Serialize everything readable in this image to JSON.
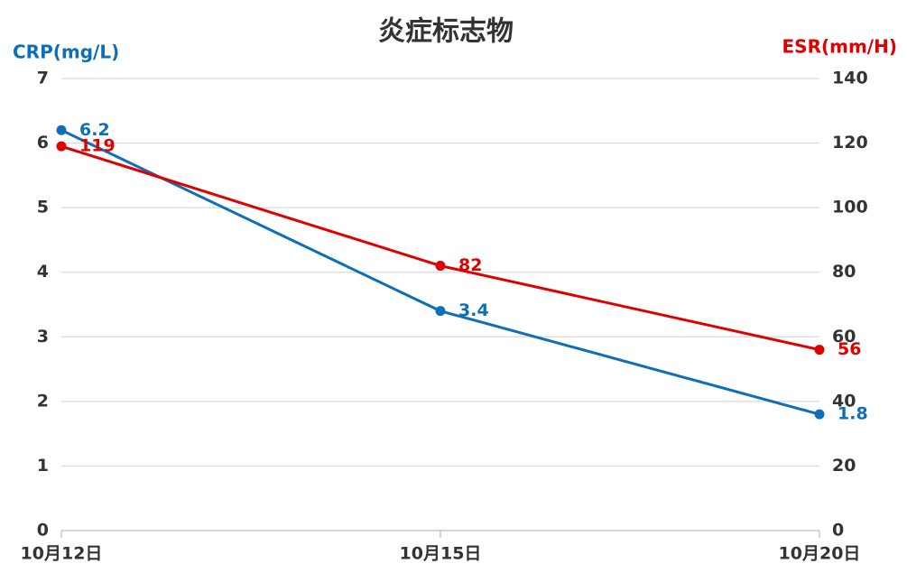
{
  "chart_data": {
    "type": "line",
    "title": "炎症标志物",
    "y_label": "CRP(mg/L)",
    "y2_label": "ESR(mm/H)",
    "categories": [
      "10月12日",
      "10月15日",
      "10月20日"
    ],
    "series": [
      {
        "name": "CRP(mg/L)",
        "color": "#0e6fb8",
        "values": [
          6.2,
          3.4,
          1.8
        ]
      },
      {
        "name": "ESR(mm/H)",
        "color": "#e00000",
        "values": [
          119,
          82,
          56
        ],
        "axis": "y2"
      }
    ],
    "ylim": [
      0,
      7
    ],
    "yticks": [
      0,
      1,
      2,
      3,
      4,
      5,
      6,
      7
    ],
    "y2lim": [
      0,
      140
    ],
    "y2ticks": [
      0,
      20,
      40,
      60,
      80,
      100,
      120,
      140
    ],
    "grid": true
  }
}
